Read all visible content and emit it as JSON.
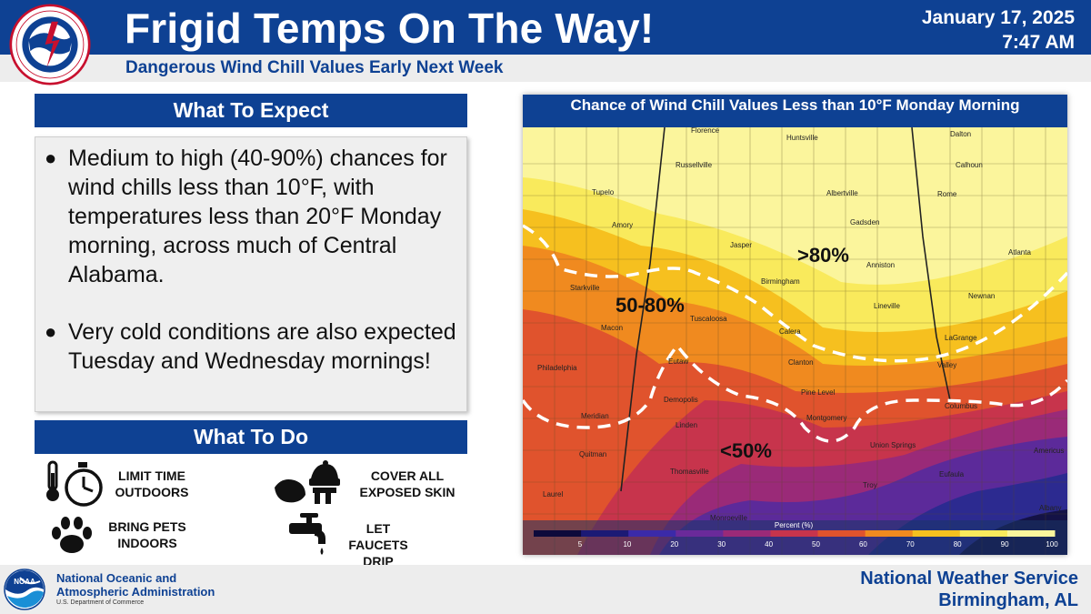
{
  "header": {
    "title": "Frigid Temps On The Way!",
    "subtitle": "Dangerous Wind Chill Values Early Next Week",
    "date": "January 17, 2025",
    "time": "7:47 AM",
    "logo_text": "NATIONAL WEATHER SERVICE"
  },
  "expect": {
    "heading": "What To Expect",
    "bullets": [
      "Medium to high (40-90%) chances for wind chills less than 10°F, with temperatures less than 20°F Monday morning, across much of Central Alabama.",
      "Very cold conditions are also expected Tuesday and Wednesday mornings!"
    ]
  },
  "todo": {
    "heading": "What To Do",
    "items": [
      {
        "line1": "LIMIT TIME",
        "line2": "OUTDOORS",
        "icon": "stopwatch-thermometer-icon"
      },
      {
        "line1": "COVER ALL",
        "line2": "EXPOSED SKIN",
        "icon": "winter-clothing-icon"
      },
      {
        "line1": "BRING PETS",
        "line2": "INDOORS",
        "icon": "paw-icon"
      },
      {
        "line1": "LET FAUCETS",
        "line2": "DRIP SLOWLY",
        "icon": "faucet-icon"
      }
    ]
  },
  "map": {
    "title": "Chance of Wind Chill Values Less than 10°F Monday Morning",
    "zone_labels": [
      ">80%",
      "50-80%",
      "<50%"
    ],
    "cities": [
      "Florence",
      "Huntsville",
      "Dalton",
      "Russellville",
      "Calhoun",
      "Tupelo",
      "Albertville",
      "Rome",
      "Amory",
      "Gadsden",
      "Jasper",
      "Atlanta",
      "Anniston",
      "Birmingham",
      "Starkville",
      "Newnan",
      "Lineville",
      "Tuscaloosa",
      "Macon",
      "Calera",
      "LaGrange",
      "Eutaw",
      "Clanton",
      "Valley",
      "Philadelphia",
      "Pine Level",
      "Demopolis",
      "Columbus",
      "Meridian",
      "Montgomery",
      "Linden",
      "Union Springs",
      "Americus",
      "Quitman",
      "Thomasville",
      "Eufaula",
      "Troy",
      "Laurel",
      "Monroeville",
      "Albany"
    ],
    "legend": {
      "label": "Percent (%)",
      "ticks": [
        "5",
        "10",
        "20",
        "30",
        "40",
        "50",
        "60",
        "70",
        "80",
        "90",
        "100"
      ],
      "colors": [
        "#0d0a3b",
        "#1c1a75",
        "#3b2aa8",
        "#6a2a9a",
        "#9a2a78",
        "#c7344c",
        "#e0532d",
        "#f08a1f",
        "#f6c01f",
        "#f9ea5c",
        "#fbf59c"
      ]
    }
  },
  "footer": {
    "noaa_line1": "National Oceanic and",
    "noaa_line2": "Atmospheric Administration",
    "noaa_dept": "U.S. Department of Commerce",
    "noaa_logo_text": "NOAA",
    "office_line1": "National Weather Service",
    "office_line2": "Birmingham, AL"
  }
}
